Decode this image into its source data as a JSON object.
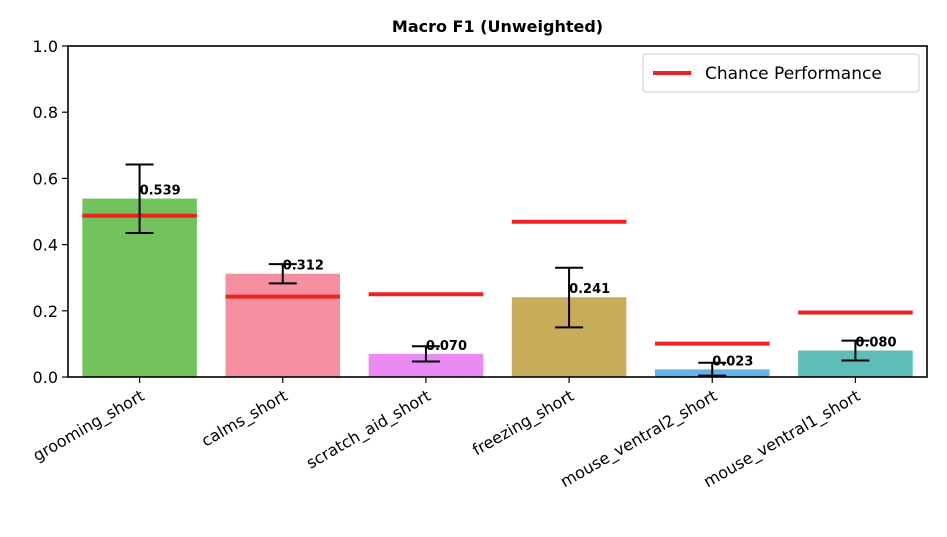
{
  "chart_data": {
    "type": "bar",
    "title": "Macro F1 (Unweighted)",
    "xlabel": "",
    "ylabel": "",
    "ylim": [
      0,
      1.0
    ],
    "yticks": [
      "0.0",
      "0.2",
      "0.4",
      "0.6",
      "0.8",
      "1.0"
    ],
    "yticks_values": [
      0,
      0.2,
      0.4,
      0.6,
      0.8,
      1.0
    ],
    "categories": [
      "grooming_short",
      "calms_short",
      "scratch_aid_short",
      "freezing_short",
      "mouse_ventral2_short",
      "mouse_ventral1_short"
    ],
    "values": [
      0.539,
      0.312,
      0.07,
      0.241,
      0.023,
      0.08
    ],
    "value_labels": [
      "0.539",
      "0.312",
      "0.070",
      "0.241",
      "0.023",
      "0.080"
    ],
    "error_low": [
      0.435,
      0.283,
      0.047,
      0.15,
      0.004,
      0.05
    ],
    "error_high": [
      0.642,
      0.341,
      0.093,
      0.33,
      0.043,
      0.11
    ],
    "chance_performance": [
      0.487,
      0.243,
      0.25,
      0.469,
      0.101,
      0.195
    ],
    "bar_colors": [
      "#72c35b",
      "#f78fa0",
      "#e98af2",
      "#c9ac5a",
      "#63b3ea",
      "#5ebdb6"
    ],
    "chance_color": "#ee2222",
    "legend": {
      "label": "Chance Performance",
      "placement": "top-right"
    },
    "grid": false
  }
}
